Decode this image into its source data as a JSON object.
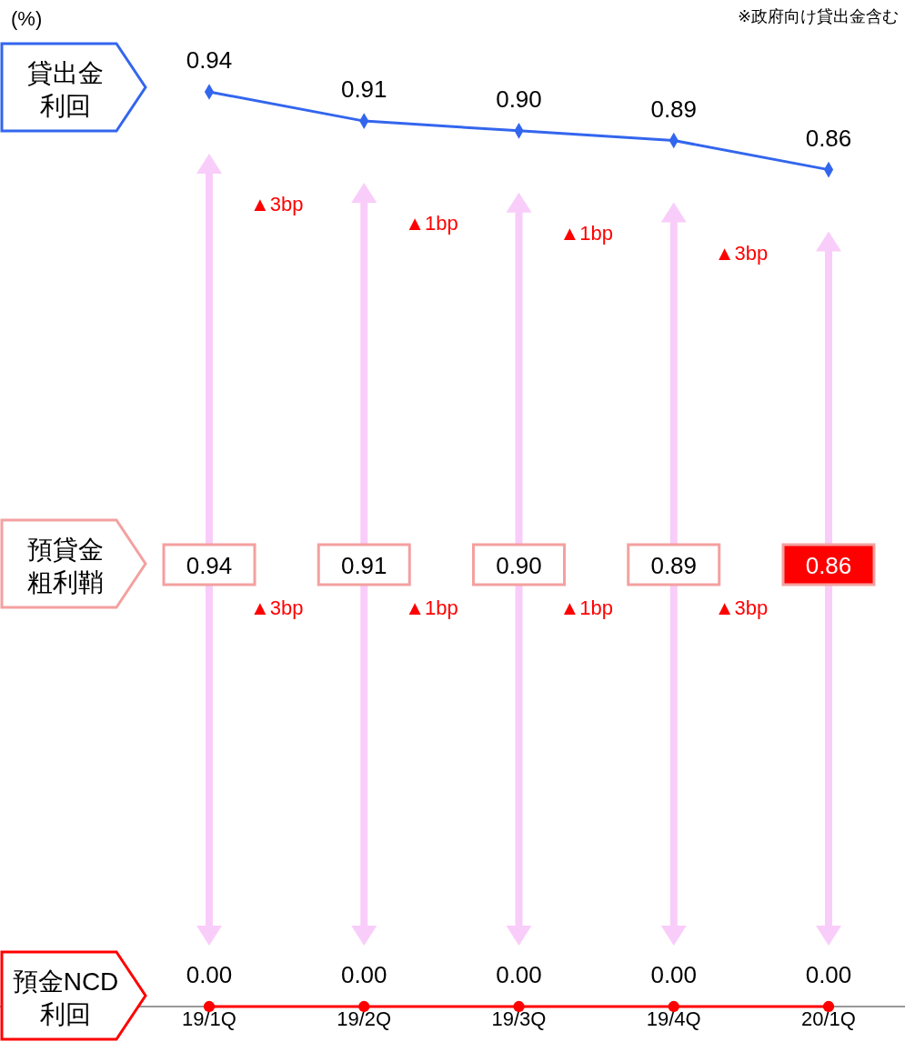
{
  "chart_data": {
    "type": "line",
    "categories": [
      "19/1Q",
      "19/2Q",
      "19/3Q",
      "19/4Q",
      "20/1Q"
    ],
    "series": [
      {
        "name": "貸出金利回",
        "color": "#3366ee",
        "marker": "diamond",
        "values": [
          0.94,
          0.91,
          0.9,
          0.89,
          0.86
        ],
        "value_labels": [
          "0.94",
          "0.91",
          "0.90",
          "0.89",
          "0.86"
        ]
      },
      {
        "name": "預金NCD利回",
        "color": "#ff0000",
        "marker": "circle",
        "values": [
          0.0,
          0.0,
          0.0,
          0.0,
          0.0
        ],
        "value_labels": [
          "0.00",
          "0.00",
          "0.00",
          "0.00",
          "0.00"
        ]
      }
    ],
    "tick_labels": "x",
    "legend": false,
    "annotations": [
      "(%)",
      "※政府向け貸出金含む",
      "預貸金粗利鞘",
      "0.94",
      "0.91",
      "0.90",
      "0.89",
      "0.86",
      "▲3bp",
      "▲1bp",
      "▲1bp",
      "▲3bp",
      "▲3bp",
      "▲1bp",
      "▲1bp",
      "▲3bp"
    ]
  }
}
